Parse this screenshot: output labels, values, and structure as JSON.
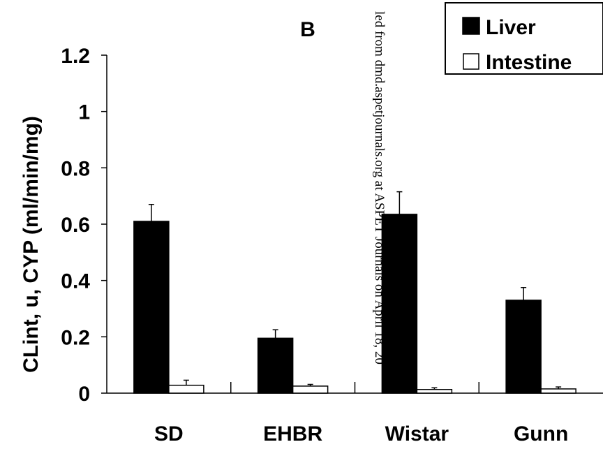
{
  "chart_data": {
    "type": "bar",
    "panel_label": "B",
    "ylabel": "CLint, u, CYP (ml/min/mg)",
    "xlabel": "",
    "ylim": [
      0,
      1.2
    ],
    "yticks": [
      0,
      0.2,
      0.4,
      0.6,
      0.8,
      1,
      1.2
    ],
    "ytick_labels": [
      "0",
      "0.2",
      "0.4",
      "0.6",
      "0.8",
      "1",
      "1.2"
    ],
    "categories": [
      "SD",
      "EHBR",
      "Wistar",
      "Gunn"
    ],
    "series": [
      {
        "name": "Liver",
        "color": "#000000",
        "values": [
          0.61,
          0.195,
          0.635,
          0.33
        ],
        "errors": [
          0.06,
          0.03,
          0.08,
          0.045
        ]
      },
      {
        "name": "Intestine",
        "color": "#ffffff",
        "values": [
          0.028,
          0.025,
          0.013,
          0.015
        ],
        "errors": [
          0.018,
          0.006,
          0.006,
          0.007
        ]
      }
    ],
    "legend": {
      "position": "top-right"
    },
    "grid": false
  },
  "watermark": "led from dmd.aspetjournals.org at ASPET Journals on April 18, 20"
}
